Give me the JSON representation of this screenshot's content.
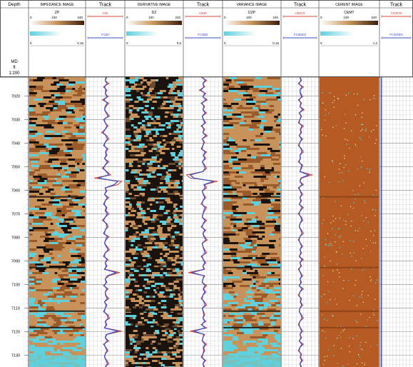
{
  "depth_header": "Depth",
  "depth_unit": {
    "line1": "MD",
    "line2": "ft",
    "line3": "1:200"
  },
  "depth_ticks": [
    7020,
    7030,
    7040,
    7050,
    7060,
    7070,
    7080,
    7090,
    7100,
    7110,
    7120,
    7130
  ],
  "colors": {
    "cyan": "#5fd0dc",
    "brown": "#b5672a",
    "tan": "#c8935a",
    "dark": "#1a120c",
    "red": "#d84a3a",
    "blue": "#3d4fc4",
    "grid": "#c8c8c8",
    "cement_bg": "#b45a22"
  },
  "tracks": [
    {
      "id": "impedance",
      "kind": "image",
      "title": "IMPEDANCE IMAGE",
      "scale": {
        "mnemonic": "ZP",
        "min": "0",
        "mid": "100",
        "max": "240"
      },
      "scale2": {
        "min": "0",
        "max": "0.15"
      }
    },
    {
      "id": "track1",
      "kind": "curve",
      "title": "Track",
      "curves": [
        {
          "mnemonic": "CBI",
          "color": "#d84a3a"
        },
        {
          "mnemonic": "FCBI",
          "color": "#3d4fc4"
        }
      ]
    },
    {
      "id": "derivative",
      "kind": "image",
      "title": "DERIVATIVE IMAGE",
      "scale": {
        "mnemonic": "DZ",
        "min": "0",
        "mid": "100",
        "max": "240"
      },
      "scale2": {
        "min": "0",
        "max": "0.6"
      }
    },
    {
      "id": "track2",
      "kind": "curve",
      "title": "Track",
      "curves": [
        {
          "mnemonic": "UBIE",
          "color": "#d84a3a"
        },
        {
          "mnemonic": "FCBIE",
          "color": "#3d4fc4"
        }
      ]
    },
    {
      "id": "variance",
      "kind": "image",
      "title": "VARIANCE IMAGE",
      "scale": {
        "mnemonic": "DZP",
        "min": "0",
        "mid": "100",
        "max": "240"
      },
      "scale2": {
        "min": "0",
        "max": "0.15"
      }
    },
    {
      "id": "track3",
      "kind": "curve",
      "title": "Track",
      "curves": [
        {
          "mnemonic": "UBIDZ",
          "color": "#d84a3a"
        },
        {
          "mnemonic": "FCBIDZ",
          "color": "#3d4fc4"
        }
      ]
    },
    {
      "id": "cement",
      "kind": "image",
      "title": "CEMENT IMAGE",
      "scale": {
        "mnemonic": "CEMT",
        "min": "0",
        "mid": "100",
        "max": "240"
      },
      "scale2": {
        "min": "0",
        "max": "1.2"
      }
    },
    {
      "id": "track4",
      "kind": "curve",
      "title": "Track",
      "curves": [
        {
          "mnemonic": "CEMIN",
          "color": "#d84a3a"
        },
        {
          "mnemonic": "FCEMIN",
          "color": "#3d4fc4"
        }
      ]
    }
  ],
  "chart_data": {
    "type": "well-log",
    "y_axis": "depth",
    "depth_range": [
      7012,
      7135
    ],
    "series": [
      {
        "name": "CBI",
        "track": "track1",
        "values": [
          0.55,
          0.5,
          0.6,
          0.45,
          0.55,
          0.5,
          0.58,
          0.42,
          0.6,
          0.52,
          0.48,
          0.55,
          0.62,
          0.45,
          0.5,
          0.58,
          0.5,
          0.4,
          0.55,
          0.6,
          0.5,
          0.45,
          0.58,
          0.52,
          0.55,
          0.48,
          0.6,
          0.5,
          0.42,
          0.55,
          0.65,
          0.2,
          0.95,
          0.85,
          0.5,
          0.55,
          0.48,
          0.6,
          0.5,
          0.45,
          0.55,
          0.52,
          0.6,
          0.5,
          0.42,
          0.55,
          0.58,
          0.5,
          0.45,
          0.6,
          0.52,
          0.48,
          0.55,
          0.62,
          0.5,
          0.45,
          0.58,
          0.5,
          0.55,
          0.48,
          0.9,
          0.6,
          0.5,
          0.55,
          0.45,
          0.58,
          0.5,
          0.52,
          0.6,
          0.48,
          0.55,
          0.5,
          0.45,
          0.58,
          0.62,
          0.5,
          0.55,
          0.48,
          0.95,
          0.55,
          0.5,
          0.6,
          0.45,
          0.52,
          0.58,
          0.5,
          0.48,
          0.55,
          0.6,
          0.5
        ]
      },
      {
        "name": "FCBI",
        "track": "track1",
        "values": [
          0.52,
          0.5,
          0.55,
          0.48,
          0.52,
          0.5,
          0.55,
          0.46,
          0.56,
          0.5,
          0.48,
          0.53,
          0.58,
          0.47,
          0.5,
          0.55,
          0.5,
          0.44,
          0.52,
          0.56,
          0.5,
          0.47,
          0.55,
          0.51,
          0.53,
          0.48,
          0.56,
          0.5,
          0.45,
          0.53,
          0.6,
          0.3,
          0.85,
          0.75,
          0.5,
          0.53,
          0.48,
          0.56,
          0.5,
          0.47,
          0.53,
          0.5,
          0.56,
          0.5,
          0.45,
          0.53,
          0.55,
          0.5,
          0.47,
          0.56,
          0.51,
          0.48,
          0.53,
          0.58,
          0.5,
          0.47,
          0.55,
          0.5,
          0.53,
          0.48,
          0.8,
          0.56,
          0.5,
          0.53,
          0.47,
          0.55,
          0.5,
          0.51,
          0.56,
          0.48,
          0.53,
          0.5,
          0.47,
          0.55,
          0.58,
          0.5,
          0.53,
          0.48,
          0.85,
          0.53,
          0.5,
          0.56,
          0.47,
          0.51,
          0.55,
          0.5,
          0.48,
          0.53,
          0.56,
          0.5
        ]
      },
      {
        "name": "UBIE",
        "track": "track2",
        "values": [
          0.45,
          0.6,
          0.5,
          0.55,
          0.4,
          0.58,
          0.5,
          0.62,
          0.45,
          0.55,
          0.5,
          0.6,
          0.48,
          0.52,
          0.58,
          0.45,
          0.55,
          0.5,
          0.62,
          0.48,
          0.55,
          0.5,
          0.45,
          0.6,
          0.52,
          0.58,
          0.48,
          0.55,
          0.6,
          0.5,
          0.05,
          0.15,
          0.9,
          0.55,
          0.6,
          0.48,
          0.52,
          0.58,
          0.5,
          0.45,
          0.6,
          0.55,
          0.5,
          0.48,
          0.6,
          0.52,
          0.45,
          0.58,
          0.5,
          0.55,
          0.62,
          0.48,
          0.5,
          0.55,
          0.6,
          0.45,
          0.52,
          0.58,
          0.5,
          0.55,
          0.1,
          0.55,
          0.5,
          0.48,
          0.6,
          0.52,
          0.58,
          0.5,
          0.45,
          0.55,
          0.6,
          0.48,
          0.52,
          0.55,
          0.5,
          0.58,
          0.45,
          0.6,
          0.15,
          0.55,
          0.5,
          0.48,
          0.6,
          0.52,
          0.55,
          0.5,
          0.45,
          0.58,
          0.5,
          0.55
        ]
      },
      {
        "name": "FCBIE",
        "track": "track2",
        "values": [
          0.48,
          0.56,
          0.5,
          0.53,
          0.44,
          0.55,
          0.5,
          0.58,
          0.47,
          0.53,
          0.5,
          0.56,
          0.48,
          0.51,
          0.55,
          0.47,
          0.53,
          0.5,
          0.58,
          0.48,
          0.53,
          0.5,
          0.47,
          0.56,
          0.51,
          0.55,
          0.48,
          0.53,
          0.56,
          0.5,
          0.15,
          0.25,
          0.8,
          0.53,
          0.56,
          0.48,
          0.51,
          0.55,
          0.5,
          0.47,
          0.56,
          0.53,
          0.5,
          0.48,
          0.56,
          0.51,
          0.47,
          0.55,
          0.5,
          0.53,
          0.58,
          0.48,
          0.5,
          0.53,
          0.56,
          0.47,
          0.51,
          0.55,
          0.5,
          0.53,
          0.2,
          0.53,
          0.5,
          0.48,
          0.56,
          0.51,
          0.55,
          0.5,
          0.47,
          0.53,
          0.56,
          0.48,
          0.51,
          0.53,
          0.5,
          0.55,
          0.47,
          0.56,
          0.25,
          0.53,
          0.5,
          0.48,
          0.56,
          0.51,
          0.53,
          0.5,
          0.47,
          0.55,
          0.5,
          0.53
        ]
      },
      {
        "name": "UBIDZ",
        "track": "track3",
        "values": [
          0.5,
          0.55,
          0.45,
          0.6,
          0.5,
          0.52,
          0.58,
          0.45,
          0.55,
          0.5,
          0.62,
          0.48,
          0.55,
          0.5,
          0.45,
          0.6,
          0.52,
          0.55,
          0.48,
          0.58,
          0.5,
          0.45,
          0.55,
          0.6,
          0.5,
          0.52,
          0.45,
          0.58,
          0.55,
          0.5,
          0.85,
          0.55,
          0.5,
          0.6,
          0.45,
          0.52,
          0.58,
          0.5,
          0.55,
          0.48,
          0.6,
          0.52,
          0.45,
          0.55,
          0.58,
          0.5,
          0.48,
          0.55,
          0.6,
          0.5,
          0.45,
          0.52,
          0.58,
          0.5,
          0.55,
          0.48,
          0.6,
          0.5,
          0.55,
          0.45,
          0.52,
          0.58,
          0.5,
          0.55,
          0.48,
          0.6,
          0.5,
          0.45,
          0.55,
          0.52,
          0.58,
          0.5,
          0.48,
          0.55,
          0.6,
          0.5,
          0.45,
          0.52,
          0.58,
          0.5,
          0.55,
          0.48,
          0.6,
          0.5,
          0.45,
          0.55,
          0.52,
          0.58,
          0.5,
          0.55
        ]
      },
      {
        "name": "FCBIDZ",
        "track": "track3",
        "values": [
          0.5,
          0.53,
          0.47,
          0.56,
          0.5,
          0.51,
          0.55,
          0.47,
          0.53,
          0.5,
          0.58,
          0.48,
          0.53,
          0.5,
          0.47,
          0.56,
          0.51,
          0.53,
          0.48,
          0.55,
          0.5,
          0.47,
          0.53,
          0.56,
          0.5,
          0.51,
          0.47,
          0.55,
          0.53,
          0.5,
          0.75,
          0.53,
          0.5,
          0.56,
          0.47,
          0.51,
          0.55,
          0.5,
          0.53,
          0.48,
          0.56,
          0.51,
          0.47,
          0.53,
          0.55,
          0.5,
          0.48,
          0.53,
          0.56,
          0.5,
          0.47,
          0.51,
          0.55,
          0.5,
          0.53,
          0.48,
          0.56,
          0.5,
          0.53,
          0.47,
          0.51,
          0.55,
          0.5,
          0.53,
          0.48,
          0.56,
          0.5,
          0.47,
          0.53,
          0.51,
          0.55,
          0.5,
          0.48,
          0.53,
          0.56,
          0.5,
          0.47,
          0.51,
          0.55,
          0.5,
          0.53,
          0.48,
          0.56,
          0.5,
          0.47,
          0.53,
          0.51,
          0.55,
          0.5,
          0.53
        ]
      },
      {
        "name": "CEMIN",
        "track": "track4",
        "values": [
          0.02,
          0.02,
          0.02,
          0.02,
          0.02,
          0.02,
          0.02,
          0.02,
          0.02,
          0.02,
          0.02,
          0.02,
          0.02,
          0.02,
          0.02,
          0.02,
          0.02,
          0.02,
          0.02,
          0.02,
          0.02,
          0.02,
          0.02,
          0.02,
          0.02,
          0.02,
          0.02,
          0.02,
          0.02,
          0.02,
          0.02,
          0.02,
          0.02,
          0.02,
          0.02,
          0.02,
          0.02,
          0.02,
          0.02,
          0.02,
          0.02,
          0.02,
          0.02,
          0.02,
          0.02,
          0.02,
          0.02,
          0.02,
          0.02,
          0.02,
          0.02,
          0.02,
          0.02,
          0.02,
          0.02,
          0.02,
          0.02,
          0.02,
          0.02,
          0.02,
          0.02,
          0.02,
          0.02,
          0.02,
          0.02,
          0.02,
          0.02,
          0.02,
          0.02,
          0.02,
          0.02,
          0.02,
          0.02,
          0.02,
          0.02,
          0.02,
          0.02,
          0.02,
          0.02,
          0.02,
          0.02,
          0.02,
          0.02,
          0.02,
          0.02,
          0.02,
          0.02,
          0.02,
          0.02,
          0.02
        ]
      },
      {
        "name": "FCEMIN",
        "track": "track4",
        "values": [
          0.01,
          0.01,
          0.01,
          0.01,
          0.01,
          0.01,
          0.01,
          0.01,
          0.01,
          0.01,
          0.01,
          0.01,
          0.01,
          0.01,
          0.01,
          0.01,
          0.01,
          0.01,
          0.01,
          0.01,
          0.01,
          0.01,
          0.01,
          0.01,
          0.01,
          0.01,
          0.01,
          0.01,
          0.01,
          0.01,
          0.01,
          0.01,
          0.01,
          0.01,
          0.01,
          0.01,
          0.01,
          0.01,
          0.01,
          0.01,
          0.01,
          0.01,
          0.01,
          0.01,
          0.01,
          0.01,
          0.01,
          0.01,
          0.01,
          0.01,
          0.01,
          0.01,
          0.01,
          0.01,
          0.01,
          0.01,
          0.01,
          0.01,
          0.01,
          0.01,
          0.01,
          0.01,
          0.01,
          0.01,
          0.01,
          0.01,
          0.01,
          0.01,
          0.01,
          0.01,
          0.01,
          0.01,
          0.01,
          0.01,
          0.01,
          0.01,
          0.01,
          0.01,
          0.01,
          0.01,
          0.01,
          0.01,
          0.01,
          0.01,
          0.01,
          0.01,
          0.01,
          0.01,
          0.01,
          0.01
        ]
      }
    ]
  }
}
